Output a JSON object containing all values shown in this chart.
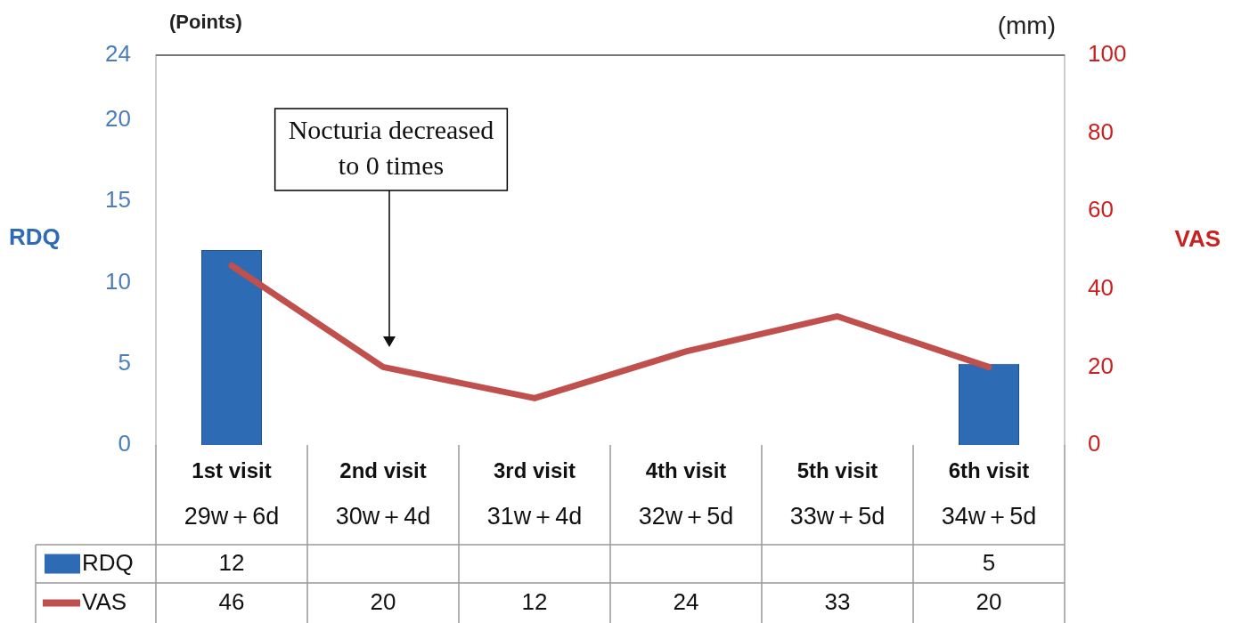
{
  "chart_data": {
    "type": "bar",
    "categories": [
      "1st visit\n29w＋6d",
      "2nd visit\n30w＋4d",
      "3rd visit\n31w＋4d",
      "4th visit\n32w＋5d",
      "5th visit\n33w＋5d",
      "6th visit\n34w＋5d"
    ],
    "series": [
      {
        "name": "RDQ",
        "color": "#2e6bb5",
        "values": [
          12,
          null,
          null,
          null,
          null,
          5
        ]
      },
      {
        "name": "VAS",
        "type": "line",
        "axis": "y2",
        "color": "#c0504d",
        "values": [
          46,
          20,
          12,
          24,
          33,
          20
        ]
      }
    ],
    "ylabel": "RDQ",
    "y2label": "VAS",
    "ylim": [
      0,
      24
    ],
    "yticks": [
      0,
      5,
      10,
      15,
      20,
      24
    ],
    "y2lim": [
      0,
      100
    ],
    "y2ticks": [
      0,
      20,
      40,
      60,
      80,
      100
    ],
    "annotations": [
      "(Points)",
      "(mm)",
      "Nocturia decreased to 0 times"
    ],
    "data_labels": true,
    "legend": "bottom",
    "grid": false,
    "marker": "none",
    "line_style": "solid"
  }
}
